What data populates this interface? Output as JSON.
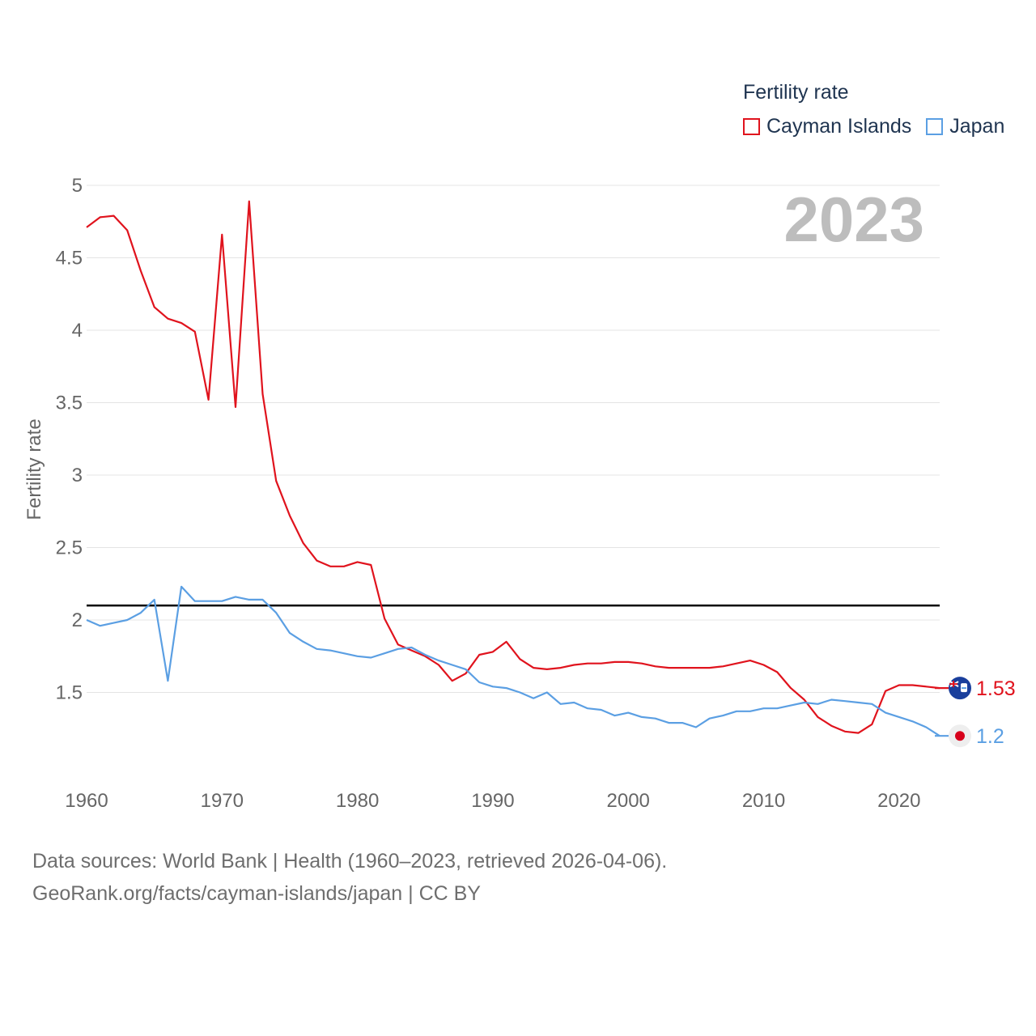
{
  "legend": {
    "title": "Fertility rate",
    "items": [
      {
        "label": "Cayman Islands",
        "color": "#e0131d"
      },
      {
        "label": "Japan",
        "color": "#5b9fe3"
      }
    ]
  },
  "year_label": "2023",
  "footer": {
    "line1": "Data sources: World Bank | Health (1960–2023, retrieved 2026-04-06).",
    "line2": "GeoRank.org/facts/cayman-islands/japan | CC BY"
  },
  "chart_data": {
    "type": "line",
    "title": "Fertility rate",
    "xlabel": "",
    "ylabel": "Fertility rate",
    "xlim": [
      1960,
      2023
    ],
    "ylim": [
      1.0,
      5.0
    ],
    "x_ticks": [
      1960,
      1970,
      1980,
      1990,
      2000,
      2010,
      2020
    ],
    "x_tick_labels": [
      "1960",
      "1970",
      "1980",
      "1990",
      "2000",
      "2010",
      "2020"
    ],
    "y_ticks": [
      1.5,
      2,
      2.5,
      3,
      3.5,
      4,
      4.5,
      5
    ],
    "y_tick_labels": [
      "1.5",
      "2",
      "2.5",
      "3",
      "3.5",
      "4",
      "4.5",
      "5"
    ],
    "grid": true,
    "reference_line": {
      "value": 2.1,
      "color": "#000000"
    },
    "x": [
      1960,
      1961,
      1962,
      1963,
      1964,
      1965,
      1966,
      1967,
      1968,
      1969,
      1970,
      1971,
      1972,
      1973,
      1974,
      1975,
      1976,
      1977,
      1978,
      1979,
      1980,
      1981,
      1982,
      1983,
      1984,
      1985,
      1986,
      1987,
      1988,
      1989,
      1990,
      1991,
      1992,
      1993,
      1994,
      1995,
      1996,
      1997,
      1998,
      1999,
      2000,
      2001,
      2002,
      2003,
      2004,
      2005,
      2006,
      2007,
      2008,
      2009,
      2010,
      2011,
      2012,
      2013,
      2014,
      2015,
      2016,
      2017,
      2018,
      2019,
      2020,
      2021,
      2022,
      2023
    ],
    "series": [
      {
        "name": "Cayman Islands",
        "color": "#e0131d",
        "end_label": "1.53",
        "values": [
          4.71,
          4.78,
          4.79,
          4.69,
          4.41,
          4.16,
          4.08,
          4.05,
          3.99,
          3.52,
          4.66,
          3.47,
          4.89,
          3.56,
          2.96,
          2.72,
          2.53,
          2.41,
          2.37,
          2.37,
          2.4,
          2.38,
          2.01,
          1.83,
          1.79,
          1.75,
          1.69,
          1.58,
          1.63,
          1.76,
          1.78,
          1.85,
          1.73,
          1.67,
          1.66,
          1.67,
          1.69,
          1.7,
          1.7,
          1.71,
          1.71,
          1.7,
          1.68,
          1.67,
          1.67,
          1.67,
          1.67,
          1.68,
          1.7,
          1.72,
          1.69,
          1.64,
          1.53,
          1.45,
          1.33,
          1.27,
          1.23,
          1.22,
          1.28,
          1.51,
          1.55,
          1.55,
          1.54,
          1.53
        ]
      },
      {
        "name": "Japan",
        "color": "#5b9fe3",
        "end_label": "1.2",
        "values": [
          2.0,
          1.96,
          1.98,
          2.0,
          2.05,
          2.14,
          1.58,
          2.23,
          2.13,
          2.13,
          2.13,
          2.16,
          2.14,
          2.14,
          2.05,
          1.91,
          1.85,
          1.8,
          1.79,
          1.77,
          1.75,
          1.74,
          1.77,
          1.8,
          1.81,
          1.76,
          1.72,
          1.69,
          1.66,
          1.57,
          1.54,
          1.53,
          1.5,
          1.46,
          1.5,
          1.42,
          1.43,
          1.39,
          1.38,
          1.34,
          1.36,
          1.33,
          1.32,
          1.29,
          1.29,
          1.26,
          1.32,
          1.34,
          1.37,
          1.37,
          1.39,
          1.39,
          1.41,
          1.43,
          1.42,
          1.45,
          1.44,
          1.43,
          1.42,
          1.36,
          1.33,
          1.3,
          1.26,
          1.2
        ]
      }
    ]
  }
}
